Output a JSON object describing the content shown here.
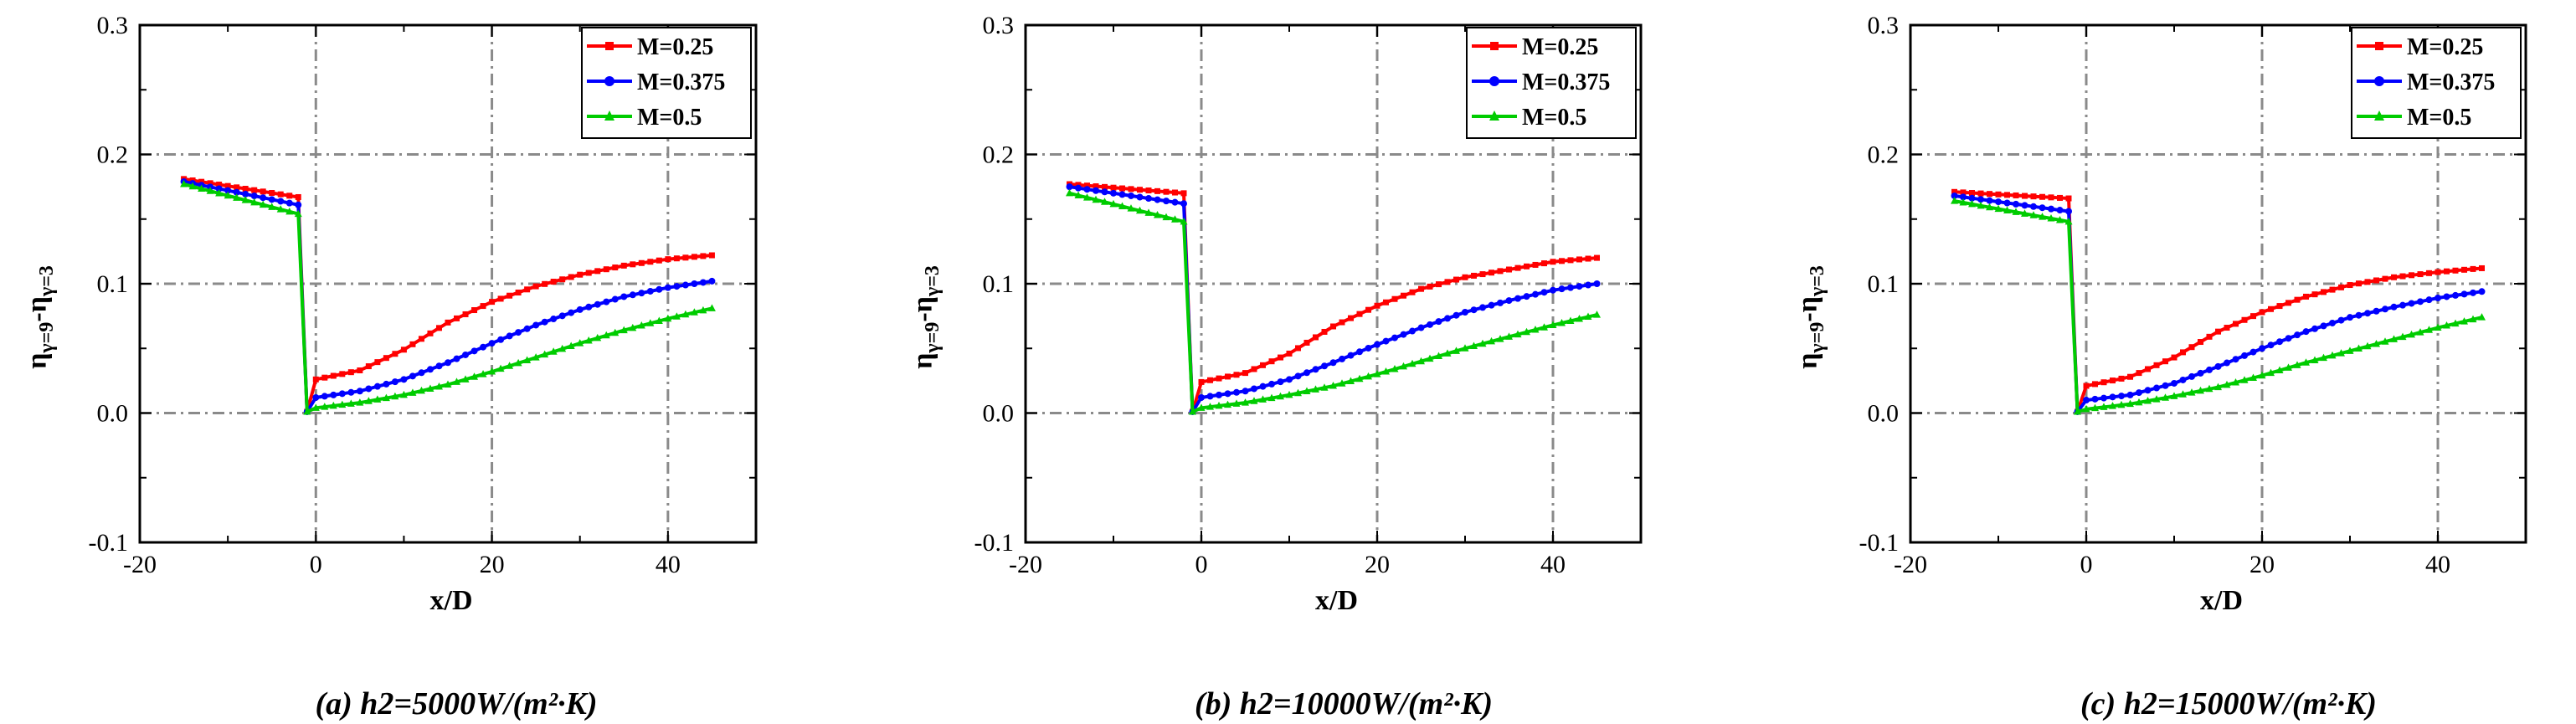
{
  "chart_data": [
    {
      "type": "line",
      "caption": "(a)  h2=5000W/(m²·K)",
      "xlabel": "x/D",
      "ylabel": "η",
      "ylabel_sub1": "γ=9",
      "ylabel_mid": "-η",
      "ylabel_sub2": "γ=3",
      "xlim": [
        -20,
        50
      ],
      "ylim": [
        -0.1,
        0.3
      ],
      "xticks": [
        "-20",
        "0",
        "20",
        "40"
      ],
      "yticks": [
        "-0.1",
        "0.0",
        "0.1",
        "0.2",
        "0.3"
      ],
      "grid": true,
      "legend_position": "top-right",
      "series": [
        {
          "name": "M=0.25",
          "color": "#ff0000",
          "marker": "square",
          "x": [
            -15,
            -2,
            -1,
            0,
            5,
            10,
            15,
            20,
            25,
            30,
            35,
            40,
            45
          ],
          "y": [
            0.181,
            0.167,
            0.001,
            0.026,
            0.033,
            0.049,
            0.07,
            0.086,
            0.098,
            0.107,
            0.114,
            0.119,
            0.122
          ]
        },
        {
          "name": "M=0.375",
          "color": "#0000ff",
          "marker": "circle",
          "x": [
            -15,
            -2,
            -1,
            0,
            5,
            10,
            15,
            20,
            25,
            30,
            35,
            40,
            45
          ],
          "y": [
            0.179,
            0.161,
            0.001,
            0.012,
            0.017,
            0.026,
            0.039,
            0.054,
            0.068,
            0.08,
            0.09,
            0.097,
            0.102
          ]
        },
        {
          "name": "M=0.5",
          "color": "#00cc00",
          "marker": "triangle",
          "x": [
            -15,
            -2,
            -1,
            0,
            5,
            10,
            15,
            20,
            25,
            30,
            35,
            40,
            45
          ],
          "y": [
            0.177,
            0.154,
            0.001,
            0.004,
            0.008,
            0.014,
            0.022,
            0.032,
            0.043,
            0.054,
            0.064,
            0.073,
            0.081
          ]
        }
      ]
    },
    {
      "type": "line",
      "caption": "(b)  h2=10000W/(m²·K)",
      "xlabel": "x/D",
      "ylabel": "η",
      "ylabel_sub1": "γ=9",
      "ylabel_mid": "-η",
      "ylabel_sub2": "γ=3",
      "xlim": [
        -20,
        50
      ],
      "ylim": [
        -0.1,
        0.3
      ],
      "xticks": [
        "-20",
        "0",
        "20",
        "40"
      ],
      "yticks": [
        "-0.1",
        "0.0",
        "0.1",
        "0.2",
        "0.3"
      ],
      "grid": true,
      "legend_position": "top-right",
      "series": [
        {
          "name": "M=0.25",
          "color": "#ff0000",
          "marker": "square",
          "x": [
            -15,
            -2,
            -1,
            0,
            5,
            10,
            15,
            20,
            25,
            30,
            35,
            40,
            45
          ],
          "y": [
            0.177,
            0.17,
            0.001,
            0.024,
            0.031,
            0.046,
            0.067,
            0.083,
            0.096,
            0.105,
            0.111,
            0.117,
            0.12
          ]
        },
        {
          "name": "M=0.375",
          "color": "#0000ff",
          "marker": "circle",
          "x": [
            -15,
            -2,
            -1,
            0,
            5,
            10,
            15,
            20,
            25,
            30,
            35,
            40,
            45
          ],
          "y": [
            0.175,
            0.162,
            0.001,
            0.012,
            0.017,
            0.026,
            0.039,
            0.053,
            0.066,
            0.078,
            0.087,
            0.095,
            0.1
          ]
        },
        {
          "name": "M=0.5",
          "color": "#00cc00",
          "marker": "triangle",
          "x": [
            -15,
            -2,
            -1,
            0,
            5,
            10,
            15,
            20,
            25,
            30,
            35,
            40,
            45
          ],
          "y": [
            0.17,
            0.148,
            0.001,
            0.004,
            0.008,
            0.014,
            0.021,
            0.03,
            0.04,
            0.05,
            0.059,
            0.068,
            0.076
          ]
        }
      ]
    },
    {
      "type": "line",
      "caption": "(c)  h2=15000W/(m²·K)",
      "xlabel": "x/D",
      "ylabel": "η",
      "ylabel_sub1": "γ=9",
      "ylabel_mid": "-η",
      "ylabel_sub2": "γ=3",
      "xlim": [
        -20,
        50
      ],
      "ylim": [
        -0.1,
        0.3
      ],
      "xticks": [
        "-20",
        "0",
        "20",
        "40"
      ],
      "yticks": [
        "-0.1",
        "0.0",
        "0.1",
        "0.2",
        "0.3"
      ],
      "grid": true,
      "legend_position": "top-right",
      "series": [
        {
          "name": "M=0.25",
          "color": "#ff0000",
          "marker": "square",
          "x": [
            -15,
            -2,
            -1,
            0,
            5,
            10,
            15,
            20,
            25,
            30,
            35,
            40,
            45
          ],
          "y": [
            0.171,
            0.166,
            0.001,
            0.021,
            0.028,
            0.043,
            0.063,
            0.078,
            0.09,
            0.099,
            0.105,
            0.109,
            0.112
          ]
        },
        {
          "name": "M=0.375",
          "color": "#0000ff",
          "marker": "circle",
          "x": [
            -15,
            -2,
            -1,
            0,
            5,
            10,
            15,
            20,
            25,
            30,
            35,
            40,
            45
          ],
          "y": [
            0.168,
            0.156,
            0.001,
            0.01,
            0.014,
            0.023,
            0.036,
            0.05,
            0.063,
            0.074,
            0.082,
            0.089,
            0.094
          ]
        },
        {
          "name": "M=0.5",
          "color": "#00cc00",
          "marker": "triangle",
          "x": [
            -15,
            -2,
            -1,
            0,
            5,
            10,
            15,
            20,
            25,
            30,
            35,
            40,
            45
          ],
          "y": [
            0.164,
            0.148,
            0.001,
            0.003,
            0.007,
            0.013,
            0.02,
            0.029,
            0.039,
            0.048,
            0.057,
            0.066,
            0.074
          ]
        }
      ]
    }
  ]
}
